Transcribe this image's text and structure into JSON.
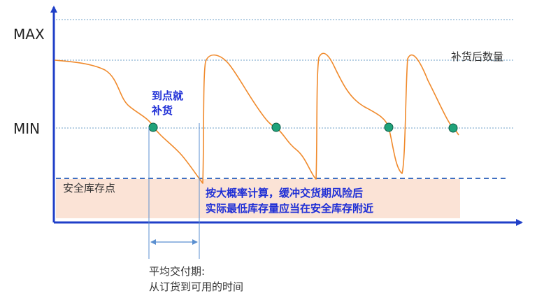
{
  "axis_labels": {
    "max": "MAX",
    "min": "MIN",
    "replenished_qty": "补货后数量"
  },
  "annotations": {
    "reorder_line1": "到点就",
    "reorder_line2": "补货",
    "safety_stock": "安全库存点",
    "risk_note_line1": "按大概率计算，缓冲交货期风险后",
    "risk_note_line2": "实际最低库存量应当在安全库存附近",
    "lead_time_line1": "平均交付期:",
    "lead_time_line2": "从订货到可用的时间"
  },
  "colors": {
    "curve": "#F08A2C",
    "reorder_marker_fill": "#1FA37A",
    "reorder_marker_stroke": "#0E5C46",
    "emphasis_text": "#1F2FD6",
    "axis": "#1F3FC8",
    "dotted_guide": "#6FA0C8",
    "safety_dash": "#3F6FC0",
    "safety_band": "#FBE3D6",
    "bracket": "#5B8FD0"
  }
}
